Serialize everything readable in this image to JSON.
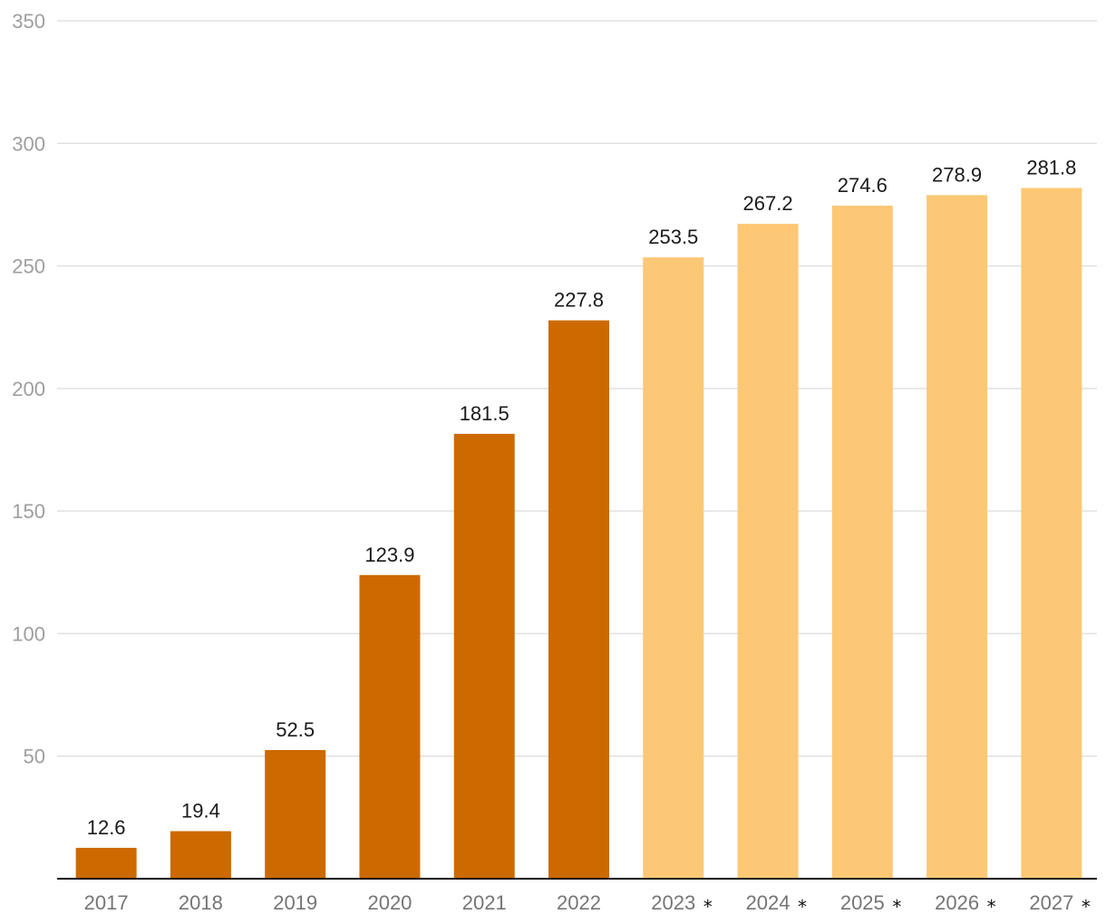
{
  "chart_data": {
    "type": "bar",
    "title": "",
    "xlabel": "",
    "ylabel": "",
    "ylim": [
      0,
      350
    ],
    "yticks": [
      50,
      100,
      150,
      200,
      250,
      300,
      350
    ],
    "grid": true,
    "categories": [
      "2017",
      "2018",
      "2019",
      "2020",
      "2021",
      "2022",
      "2023",
      "2024",
      "2025",
      "2026",
      "2027"
    ],
    "forecast_marker": "*",
    "forecast": [
      false,
      false,
      false,
      false,
      false,
      false,
      true,
      true,
      true,
      true,
      true
    ],
    "values": [
      12.6,
      19.4,
      52.5,
      123.9,
      181.5,
      227.8,
      253.5,
      267.2,
      274.6,
      278.9,
      281.8
    ],
    "value_labels": [
      "12.6",
      "19.4",
      "52.5",
      "123.9",
      "181.5",
      "227.8",
      "253.5",
      "267.2",
      "274.6",
      "278.9",
      "281.8"
    ],
    "colors": {
      "actual": "#cc6a00",
      "forecast": "#fdc875"
    }
  }
}
